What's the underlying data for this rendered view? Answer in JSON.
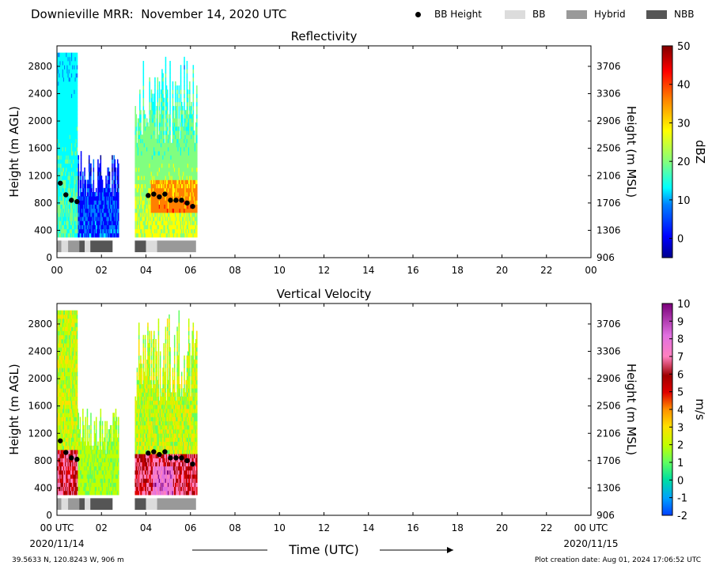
{
  "page": {
    "title": "Downieville MRR:  November 14, 2020 UTC",
    "location": "39.5633 N, 120.8243 W, 906 m",
    "creation": "Plot creation date: Aug 01, 2024 17:06:52 UTC"
  },
  "legend": {
    "items": [
      {
        "label": "BB Height",
        "kind": "dot",
        "color": "#000000"
      },
      {
        "label": "BB",
        "kind": "box",
        "color": "#dcdcdc"
      },
      {
        "label": "Hybrid",
        "kind": "box",
        "color": "#999999"
      },
      {
        "label": "NBB",
        "kind": "box",
        "color": "#555555"
      }
    ]
  },
  "chart_data": [
    {
      "type": "heatmap",
      "title": "Reflectivity",
      "ylabel": "Height (m AGL)",
      "ylabel_right": "Height (m MSL)",
      "xlim": [
        0,
        24
      ],
      "ylim": [
        0,
        3100
      ],
      "xticks": [
        "00",
        "02",
        "04",
        "06",
        "08",
        "10",
        "12",
        "14",
        "16",
        "18",
        "20",
        "22",
        "00"
      ],
      "yticks": [
        0,
        400,
        800,
        1200,
        1600,
        2000,
        2400,
        2800
      ],
      "yticks_right": [
        906,
        1306,
        1706,
        2106,
        2506,
        2906,
        3306,
        3706
      ],
      "colorbar": {
        "label": "dBZ",
        "min": -5,
        "max": 50,
        "ticks": [
          0,
          10,
          20,
          30,
          40,
          50
        ]
      },
      "bb_height": [
        {
          "x": 0.15,
          "y": 1090
        },
        {
          "x": 0.4,
          "y": 920
        },
        {
          "x": 0.65,
          "y": 840
        },
        {
          "x": 0.9,
          "y": 820
        },
        {
          "x": 4.1,
          "y": 910
        },
        {
          "x": 4.35,
          "y": 930
        },
        {
          "x": 4.6,
          "y": 890
        },
        {
          "x": 4.85,
          "y": 930
        },
        {
          "x": 5.1,
          "y": 840
        },
        {
          "x": 5.35,
          "y": 840
        },
        {
          "x": 5.6,
          "y": 840
        },
        {
          "x": 5.85,
          "y": 800
        },
        {
          "x": 6.1,
          "y": 750
        }
      ],
      "bb_type": [
        {
          "start": 0.0,
          "end": 0.2,
          "type": "Hybrid"
        },
        {
          "start": 0.2,
          "end": 0.5,
          "type": "BB"
        },
        {
          "start": 0.5,
          "end": 1.0,
          "type": "Hybrid"
        },
        {
          "start": 1.0,
          "end": 1.25,
          "type": "NBB"
        },
        {
          "start": 1.25,
          "end": 1.5,
          "type": "BB"
        },
        {
          "start": 1.5,
          "end": 2.5,
          "type": "NBB"
        },
        {
          "start": 3.5,
          "end": 4.0,
          "type": "NBB"
        },
        {
          "start": 4.0,
          "end": 4.5,
          "type": "BB"
        },
        {
          "start": 4.5,
          "end": 6.25,
          "type": "Hybrid"
        }
      ]
    },
    {
      "type": "heatmap",
      "title": "Vertical Velocity",
      "ylabel": "Height (m AGL)",
      "ylabel_right": "Height (m MSL)",
      "xlabel": "Time (UTC)",
      "xlim": [
        0,
        24
      ],
      "ylim": [
        0,
        3100
      ],
      "xticks": [
        "00 UTC",
        "02",
        "04",
        "06",
        "08",
        "10",
        "12",
        "14",
        "16",
        "18",
        "20",
        "22",
        "00 UTC"
      ],
      "xdate_start": "2020/11/14",
      "xdate_end": "2020/11/15",
      "yticks": [
        0,
        400,
        800,
        1200,
        1600,
        2000,
        2400,
        2800
      ],
      "yticks_right": [
        906,
        1306,
        1706,
        2106,
        2506,
        2906,
        3306,
        3706
      ],
      "colorbar": {
        "label": "m/s",
        "min": -2,
        "max": 10,
        "ticks": [
          -2,
          -1,
          0,
          1,
          2,
          3,
          4,
          5,
          6,
          7,
          8,
          9,
          10
        ]
      },
      "bb_height": [
        {
          "x": 0.15,
          "y": 1090
        },
        {
          "x": 0.4,
          "y": 920
        },
        {
          "x": 0.65,
          "y": 840
        },
        {
          "x": 0.9,
          "y": 820
        },
        {
          "x": 4.1,
          "y": 910
        },
        {
          "x": 4.35,
          "y": 930
        },
        {
          "x": 4.6,
          "y": 890
        },
        {
          "x": 4.85,
          "y": 930
        },
        {
          "x": 5.1,
          "y": 840
        },
        {
          "x": 5.35,
          "y": 840
        },
        {
          "x": 5.6,
          "y": 840
        },
        {
          "x": 5.85,
          "y": 800
        },
        {
          "x": 6.1,
          "y": 750
        }
      ],
      "bb_type": [
        {
          "start": 0.0,
          "end": 0.2,
          "type": "Hybrid"
        },
        {
          "start": 0.2,
          "end": 0.5,
          "type": "BB"
        },
        {
          "start": 0.5,
          "end": 1.0,
          "type": "Hybrid"
        },
        {
          "start": 1.0,
          "end": 1.25,
          "type": "NBB"
        },
        {
          "start": 1.25,
          "end": 1.5,
          "type": "BB"
        },
        {
          "start": 1.5,
          "end": 2.5,
          "type": "NBB"
        },
        {
          "start": 3.5,
          "end": 4.0,
          "type": "NBB"
        },
        {
          "start": 4.0,
          "end": 4.5,
          "type": "BB"
        },
        {
          "start": 4.5,
          "end": 6.25,
          "type": "Hybrid"
        }
      ]
    }
  ]
}
